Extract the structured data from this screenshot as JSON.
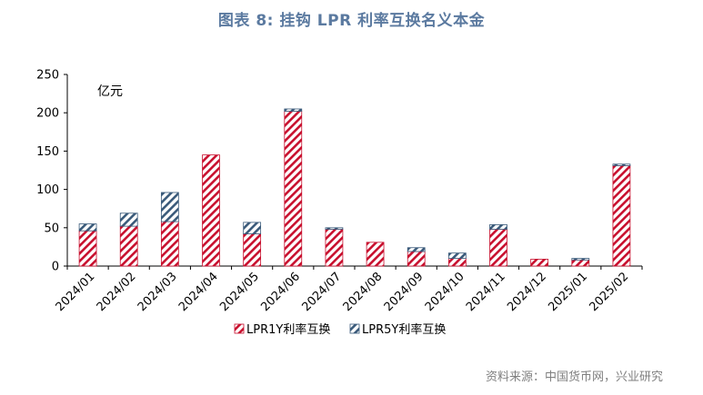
{
  "page": {
    "title": "图表 8:    挂钩 LPR 利率互换名义本金",
    "source": "资料来源：中国货币网，兴业研究"
  },
  "colors": {
    "title": "#5b7aa0",
    "lpr1y": "#c8102e",
    "lpr5y": "#3a5a7a",
    "axis": "#000000",
    "source": "#7f7f7f"
  },
  "chart_data": {
    "type": "bar",
    "stacked": true,
    "unit_label": "亿元",
    "categories": [
      "2024/01",
      "2024/02",
      "2024/03",
      "2024/04",
      "2024/05",
      "2024/06",
      "2024/07",
      "2024/08",
      "2024/09",
      "2024/10",
      "2024/11",
      "2024/12",
      "2025/01",
      "2025/02"
    ],
    "series": [
      {
        "name": "LPR1Y利率互换",
        "pattern": "red-diagonal",
        "values": [
          46,
          52,
          58,
          145,
          42,
          202,
          48,
          31,
          19,
          10,
          48,
          9,
          8,
          131
        ]
      },
      {
        "name": "LPR5Y利率互换",
        "pattern": "blue-diagonal",
        "values": [
          9,
          17,
          38,
          0,
          15,
          3,
          2,
          0,
          5,
          7,
          6,
          0,
          2,
          2
        ]
      }
    ],
    "ylim": [
      0,
      250
    ],
    "yticks": [
      0,
      50,
      100,
      150,
      200,
      250
    ],
    "grid": false,
    "legend_position": "bottom"
  }
}
